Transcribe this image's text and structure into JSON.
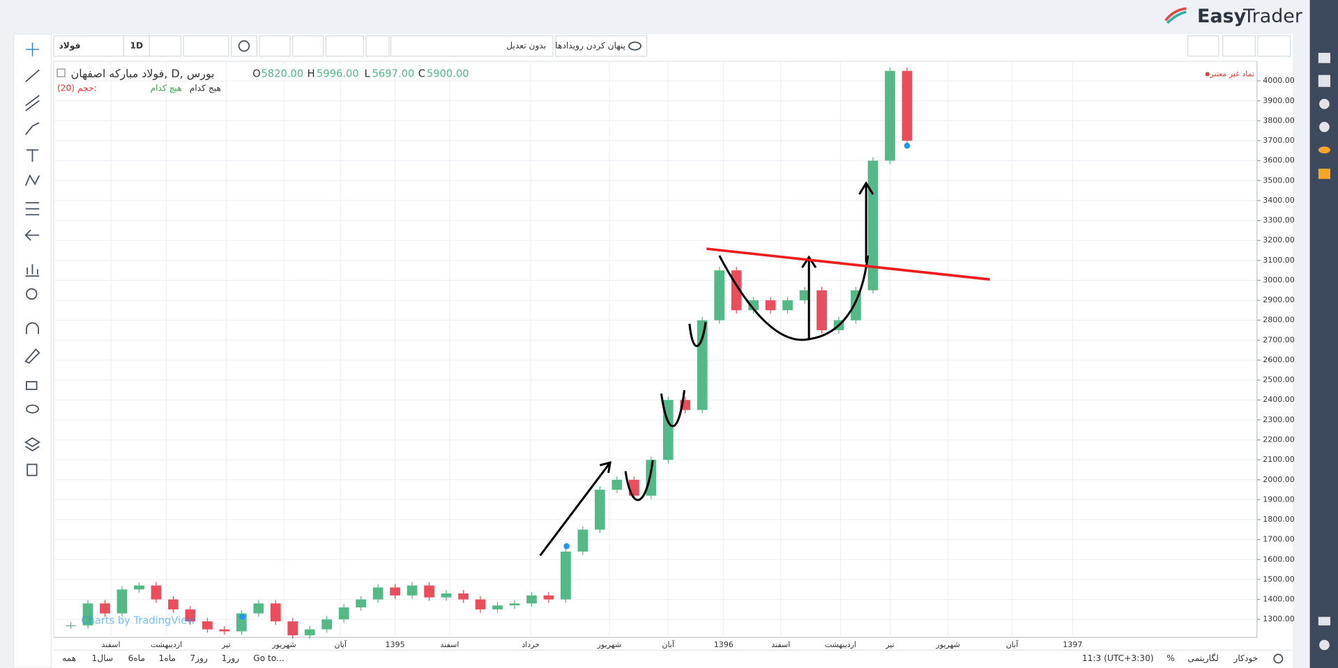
{
  "header": {
    "logo_left": "Easy",
    "logo_right": "Trader"
  },
  "toolbar": {
    "symbol": "فولاد",
    "interval": "1D",
    "adjust": "بدون تعدیل",
    "hide_events": "پنهان کردن رویدادها"
  },
  "legend": {
    "title": "فولاد مبارکه اصفهان, D, بورس",
    "o_label": "O",
    "o_value": "5820.00",
    "h_label": "H",
    "h_value": "5996.00",
    "l_label": "L",
    "l_value": "5697.00",
    "c_label": "C",
    "c_value": "5900.00",
    "volume": "(20) حجم:",
    "none_green": "هیچ کدام",
    "none_dark": "هیج کدام",
    "invalid_symbol": "نماد غیر معتبر"
  },
  "chart_data": {
    "type": "candlestick",
    "watermark": "Charts by TradingView",
    "x": [
      1,
      2,
      3,
      4,
      5,
      6,
      7,
      8,
      9,
      10,
      11,
      12,
      13,
      14,
      15,
      16,
      17,
      18,
      19,
      20,
      21,
      22,
      23,
      24,
      25,
      26,
      27,
      28,
      29,
      30,
      31,
      32,
      33,
      34,
      35,
      36,
      37,
      38,
      39,
      40,
      41,
      42,
      43,
      44,
      45,
      46,
      47,
      48,
      49,
      50
    ],
    "values": [
      1270,
      1380,
      1330,
      1450,
      1470,
      1400,
      1350,
      1290,
      1250,
      1240,
      1330,
      1380,
      1290,
      1220,
      1250,
      1300,
      1360,
      1400,
      1460,
      1420,
      1470,
      1410,
      1430,
      1400,
      1350,
      1370,
      1380,
      1420,
      1400,
      1640,
      1750,
      1950,
      2000,
      1920,
      2100,
      2400,
      2350,
      2800,
      3050,
      2850,
      2900,
      2850,
      2900,
      2950,
      2750,
      2800,
      2950,
      3600,
      4050,
      3700
    ],
    "colors": {
      "up": "#53b987",
      "down": "#eb4d5c"
    },
    "grid": true,
    "xlim": [
      0,
      70.5
    ],
    "xticks": [
      {
        "value": 3.35,
        "label": "اسفند"
      },
      {
        "value": 6.6,
        "label": "اردیبهشت"
      },
      {
        "value": 10.1,
        "label": "تیر"
      },
      {
        "value": 13.5,
        "label": "شهریور"
      },
      {
        "value": 16.8,
        "label": "آبان"
      },
      {
        "value": 20,
        "label": "1395"
      },
      {
        "value": 23.2,
        "label": "اسفند"
      },
      {
        "value": 27.95,
        "label": "خرداد"
      },
      {
        "value": 32.55,
        "label": "شهریور"
      },
      {
        "value": 36,
        "label": "آبان"
      },
      {
        "value": 39.25,
        "label": "1396"
      },
      {
        "value": 42.6,
        "label": "اسفند"
      },
      {
        "value": 46.1,
        "label": "اردیبهشت"
      },
      {
        "value": 49,
        "label": "تیر"
      },
      {
        "value": 52.4,
        "label": "شهریور"
      },
      {
        "value": 56.15,
        "label": "آبان"
      },
      {
        "value": 59.7,
        "label": "1397"
      }
    ],
    "ylim": [
      1210,
      4098
    ],
    "yticks": [
      {
        "value": 1300,
        "label": "1300.00"
      },
      {
        "value": 1400,
        "label": "1400.00"
      },
      {
        "value": 1500,
        "label": "1500.00"
      },
      {
        "value": 1600,
        "label": "1600.00"
      },
      {
        "value": 1700,
        "label": "1700.00"
      },
      {
        "value": 1800,
        "label": "1800.00"
      },
      {
        "value": 1900,
        "label": "1900.00"
      },
      {
        "value": 2000,
        "label": "2000.00"
      },
      {
        "value": 2100,
        "label": "2100.00"
      },
      {
        "value": 2200,
        "label": "2200.00"
      },
      {
        "value": 2300,
        "label": "2300.00"
      },
      {
        "value": 2400,
        "label": "2400.00"
      },
      {
        "value": 2500,
        "label": "2500.00"
      },
      {
        "value": 2600,
        "label": "2600.00"
      },
      {
        "value": 2700,
        "label": "2700.00"
      },
      {
        "value": 2800,
        "label": "2800.00"
      },
      {
        "value": 2900,
        "label": "2900.00"
      },
      {
        "value": 3000,
        "label": "3000.00"
      },
      {
        "value": 3100,
        "label": "3100.00"
      },
      {
        "value": 3200,
        "label": "3200.00"
      },
      {
        "value": 3300,
        "label": "3300.00"
      },
      {
        "value": 3400,
        "label": "3400.00"
      },
      {
        "value": 3500,
        "label": "3500.00"
      },
      {
        "value": 3600,
        "label": "3600.00"
      },
      {
        "value": 3700,
        "label": "3700.00"
      },
      {
        "value": 3800,
        "label": "3800.00"
      },
      {
        "value": 3900,
        "label": "3900.00"
      },
      {
        "value": 4000,
        "label": "4000.00"
      }
    ]
  },
  "footer": {
    "all": "همه",
    "y1": "1سال",
    "m6": "6ماه",
    "m1": "1ماه",
    "d7": "7روز",
    "d1": "1روز",
    "goto": "Go to...",
    "time": "11:3 (UTC+3:30)",
    "percent": "%",
    "log": "لگاریتمی",
    "auto": "خودکار"
  }
}
